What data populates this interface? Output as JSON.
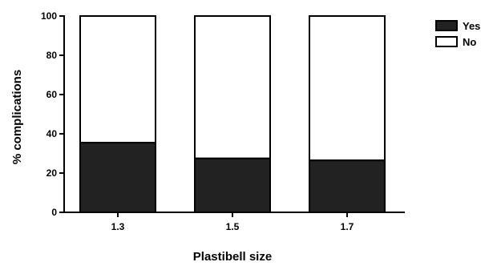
{
  "chart_data": {
    "type": "bar",
    "stacked": true,
    "categories": [
      "1.3",
      "1.5",
      "1.7"
    ],
    "series": [
      {
        "name": "Yes",
        "values": [
          35.5,
          27.5,
          26.5
        ],
        "color": "#222222"
      },
      {
        "name": "No",
        "values": [
          64.5,
          72.5,
          73.5
        ],
        "color": "#ffffff"
      }
    ],
    "xlabel": "Plastibell size",
    "ylabel": "% complications",
    "ylim": [
      0,
      100
    ],
    "yticks": [
      0,
      20,
      40,
      60,
      80,
      100
    ],
    "grid": false,
    "legend": "right"
  }
}
